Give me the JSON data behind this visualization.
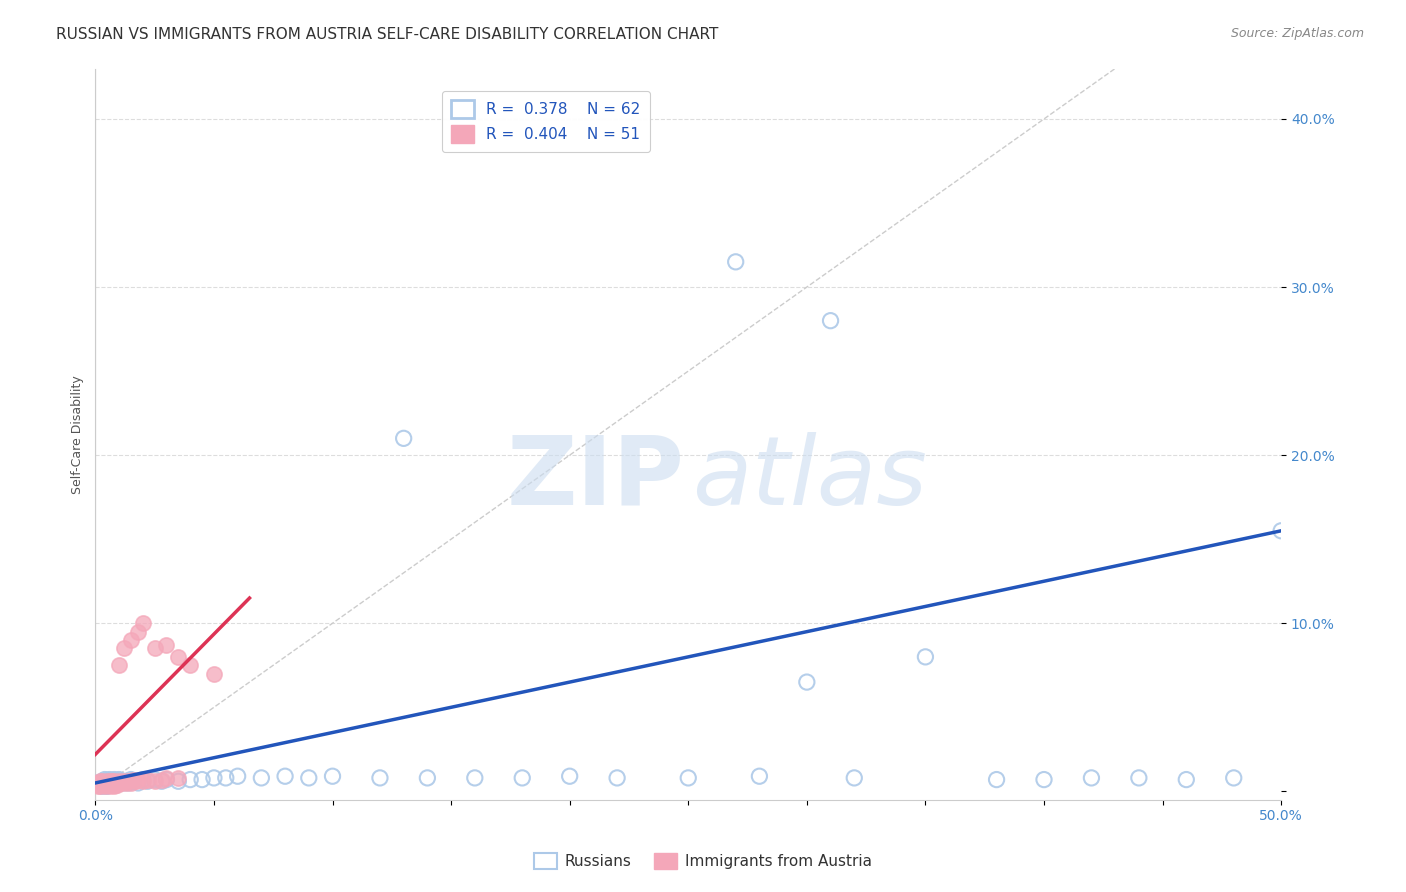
{
  "title": "RUSSIAN VS IMMIGRANTS FROM AUSTRIA SELF-CARE DISABILITY CORRELATION CHART",
  "source": "Source: ZipAtlas.com",
  "ylabel": "Self-Care Disability",
  "xlim": [
    0.0,
    0.5
  ],
  "ylim": [
    -0.005,
    0.43
  ],
  "xtick_positions": [
    0.0,
    0.05,
    0.1,
    0.15,
    0.2,
    0.25,
    0.3,
    0.35,
    0.4,
    0.45,
    0.5
  ],
  "xticklabels": [
    "0.0%",
    "",
    "",
    "",
    "",
    "",
    "",
    "",
    "",
    "",
    "50.0%"
  ],
  "ytick_positions": [
    0.0,
    0.1,
    0.2,
    0.3,
    0.4
  ],
  "yticklabels": [
    "",
    "10.0%",
    "20.0%",
    "30.0%",
    "40.0%"
  ],
  "grid_yticks": [
    0.1,
    0.2,
    0.3,
    0.4
  ],
  "legend_blue_R": "0.378",
  "legend_blue_N": "62",
  "legend_pink_R": "0.404",
  "legend_pink_N": "51",
  "blue_color": "#adc9e8",
  "pink_color": "#f4a7b9",
  "blue_line_color": "#2255bb",
  "pink_line_color": "#dd3355",
  "ref_line_color": "#cccccc",
  "background_color": "#ffffff",
  "blue_line_x": [
    0.0,
    0.5
  ],
  "blue_line_y": [
    0.005,
    0.155
  ],
  "pink_line_x": [
    0.0,
    0.065
  ],
  "pink_line_y": [
    0.022,
    0.115
  ],
  "ref_line_x": [
    0.0,
    0.43
  ],
  "ref_line_y": [
    0.0,
    0.43
  ],
  "blue_scatter_x": [
    0.001,
    0.002,
    0.003,
    0.003,
    0.004,
    0.004,
    0.005,
    0.005,
    0.005,
    0.006,
    0.006,
    0.007,
    0.007,
    0.008,
    0.008,
    0.009,
    0.009,
    0.01,
    0.01,
    0.011,
    0.012,
    0.013,
    0.014,
    0.015,
    0.016,
    0.018,
    0.02,
    0.022,
    0.025,
    0.028,
    0.03,
    0.035,
    0.04,
    0.045,
    0.05,
    0.055,
    0.06,
    0.07,
    0.08,
    0.09,
    0.1,
    0.12,
    0.14,
    0.16,
    0.18,
    0.2,
    0.22,
    0.25,
    0.28,
    0.3,
    0.32,
    0.35,
    0.38,
    0.4,
    0.42,
    0.44,
    0.46,
    0.48,
    0.5,
    0.27,
    0.31,
    0.13
  ],
  "blue_scatter_y": [
    0.005,
    0.004,
    0.006,
    0.003,
    0.005,
    0.007,
    0.004,
    0.006,
    0.003,
    0.005,
    0.007,
    0.004,
    0.006,
    0.005,
    0.007,
    0.004,
    0.006,
    0.005,
    0.007,
    0.006,
    0.005,
    0.006,
    0.005,
    0.007,
    0.006,
    0.005,
    0.007,
    0.006,
    0.007,
    0.006,
    0.007,
    0.006,
    0.007,
    0.007,
    0.008,
    0.008,
    0.009,
    0.008,
    0.009,
    0.008,
    0.009,
    0.008,
    0.008,
    0.008,
    0.008,
    0.009,
    0.008,
    0.008,
    0.009,
    0.065,
    0.008,
    0.08,
    0.007,
    0.007,
    0.008,
    0.008,
    0.007,
    0.008,
    0.155,
    0.315,
    0.28,
    0.21
  ],
  "pink_scatter_x": [
    0.001,
    0.001,
    0.002,
    0.002,
    0.002,
    0.003,
    0.003,
    0.003,
    0.004,
    0.004,
    0.004,
    0.005,
    0.005,
    0.005,
    0.006,
    0.006,
    0.006,
    0.007,
    0.007,
    0.007,
    0.008,
    0.008,
    0.008,
    0.009,
    0.009,
    0.01,
    0.01,
    0.011,
    0.012,
    0.013,
    0.014,
    0.015,
    0.016,
    0.017,
    0.018,
    0.02,
    0.022,
    0.025,
    0.028,
    0.03,
    0.035,
    0.01,
    0.012,
    0.015,
    0.018,
    0.02,
    0.025,
    0.03,
    0.035,
    0.04,
    0.05
  ],
  "pink_scatter_y": [
    0.003,
    0.005,
    0.004,
    0.006,
    0.003,
    0.005,
    0.004,
    0.006,
    0.004,
    0.005,
    0.003,
    0.005,
    0.004,
    0.006,
    0.004,
    0.006,
    0.003,
    0.005,
    0.004,
    0.006,
    0.004,
    0.006,
    0.003,
    0.005,
    0.004,
    0.005,
    0.006,
    0.005,
    0.006,
    0.005,
    0.006,
    0.005,
    0.007,
    0.006,
    0.007,
    0.006,
    0.007,
    0.006,
    0.007,
    0.008,
    0.008,
    0.075,
    0.085,
    0.09,
    0.095,
    0.1,
    0.085,
    0.087,
    0.08,
    0.075,
    0.07
  ],
  "title_fontsize": 11,
  "axis_label_fontsize": 9,
  "tick_fontsize": 10,
  "legend_fontsize": 11,
  "marker_size": 120
}
